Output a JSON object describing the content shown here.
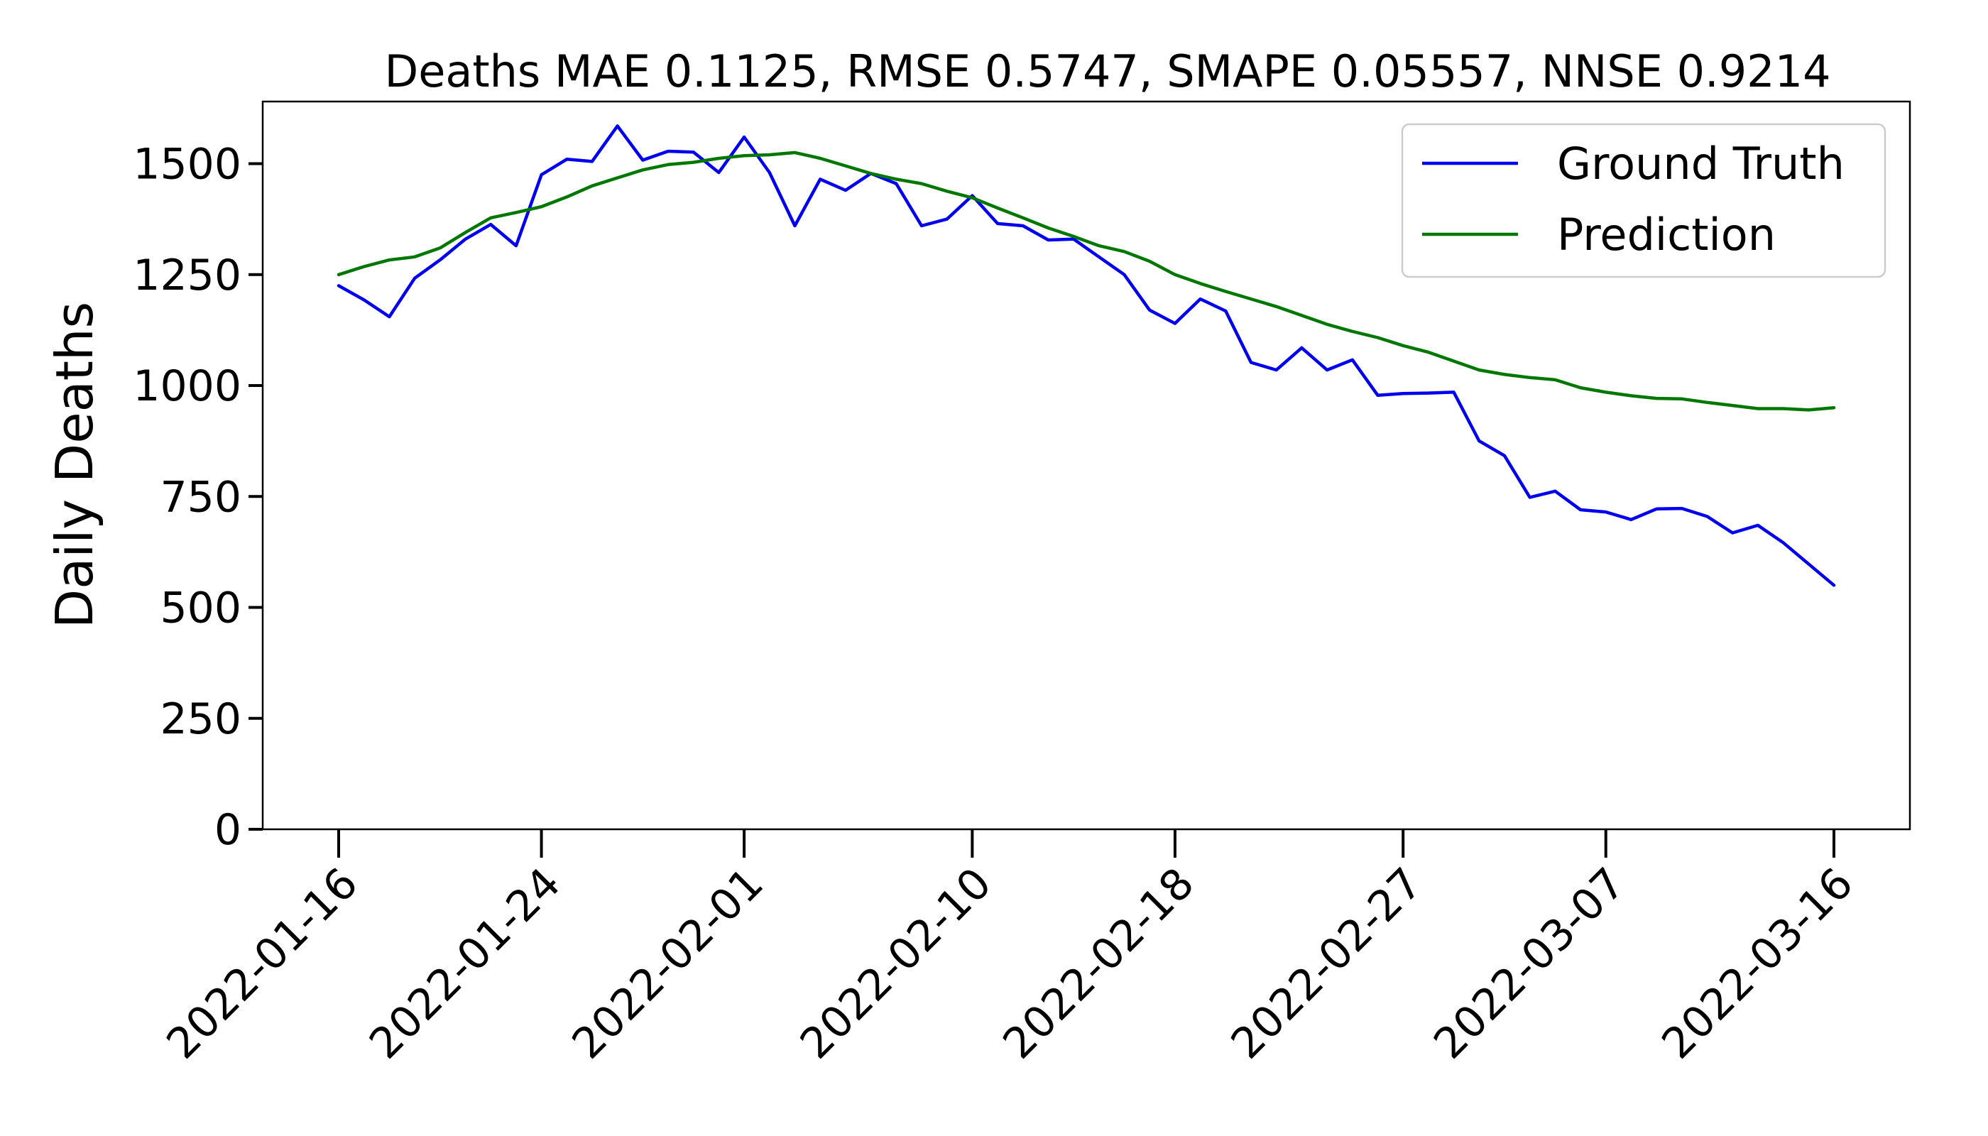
{
  "chart_data": {
    "type": "line",
    "title": "Deaths MAE 0.1125, RMSE 0.5747, SMAPE 0.05557, NNSE 0.9214",
    "xlabel": "",
    "ylabel": "Daily Deaths",
    "ylim": [
      0,
      1640
    ],
    "yticks": [
      0,
      250,
      500,
      750,
      1000,
      1250,
      1500
    ],
    "yticklabels": [
      "0",
      "250",
      "500",
      "750",
      "1000",
      "1250",
      "1500"
    ],
    "x_start": "2022-01-16",
    "xticklabels": [
      "2022-01-16",
      "2022-01-24",
      "2022-02-01",
      "2022-02-10",
      "2022-02-18",
      "2022-02-27",
      "2022-03-07",
      "2022-03-16"
    ],
    "grid": false,
    "legend": "upper-right",
    "series": [
      {
        "name": "Ground Truth",
        "color": "#0000ee",
        "values": [
          1225,
          1193,
          1155,
          1242,
          1283,
          1330,
          1363,
          1315,
          1475,
          1510,
          1505,
          1585,
          1508,
          1528,
          1526,
          1480,
          1560,
          1480,
          1360,
          1465,
          1440,
          1478,
          1455,
          1360,
          1375,
          1428,
          1365,
          1360,
          1328,
          1330,
          1290,
          1250,
          1170,
          1140,
          1195,
          1168,
          1052,
          1035,
          1085,
          1035,
          1058,
          978,
          982,
          983,
          985,
          875,
          842,
          748,
          762,
          720,
          715,
          698,
          722,
          723,
          705,
          668,
          685,
          646,
          598,
          550
        ]
      },
      {
        "name": "Prediction",
        "color": "#007700",
        "values": [
          1250,
          1268,
          1283,
          1290,
          1310,
          1345,
          1378,
          1390,
          1403,
          1425,
          1450,
          1468,
          1486,
          1498,
          1503,
          1512,
          1518,
          1520,
          1525,
          1512,
          1495,
          1478,
          1465,
          1455,
          1438,
          1423,
          1400,
          1378,
          1355,
          1336,
          1315,
          1302,
          1280,
          1250,
          1230,
          1212,
          1195,
          1178,
          1158,
          1138,
          1122,
          1108,
          1090,
          1075,
          1055,
          1035,
          1025,
          1018,
          1013,
          995,
          985,
          977,
          971,
          970,
          962,
          955,
          948,
          948,
          945,
          950
        ]
      }
    ]
  }
}
